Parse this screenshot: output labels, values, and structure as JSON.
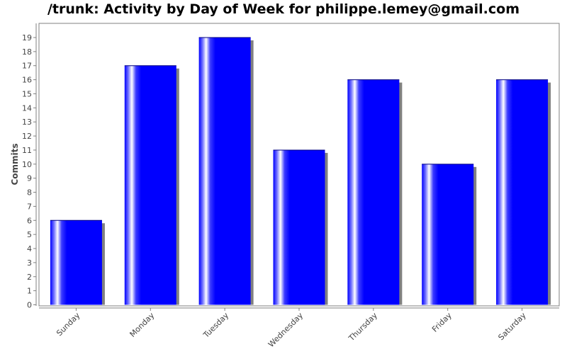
{
  "chart_data": {
    "type": "bar",
    "title": "/trunk: Activity by Day of Week for philippe.lemey@gmail.com",
    "xlabel": "",
    "ylabel": "Commits",
    "categories": [
      "Sunday",
      "Monday",
      "Tuesday",
      "Wednesday",
      "Thursday",
      "Friday",
      "Saturday"
    ],
    "values": [
      6,
      17,
      19,
      11,
      16,
      10,
      16
    ],
    "ylim": [
      0,
      19
    ],
    "yticks": [
      "0",
      "1",
      "2",
      "3",
      "4",
      "5",
      "6",
      "7",
      "8",
      "9",
      "10",
      "11",
      "12",
      "13",
      "14",
      "15",
      "16",
      "17",
      "18",
      "19"
    ],
    "grid": false,
    "legend": "none",
    "colors": {
      "bar": "#0000ff",
      "shadow": "#808080",
      "axis": "#808080"
    }
  }
}
